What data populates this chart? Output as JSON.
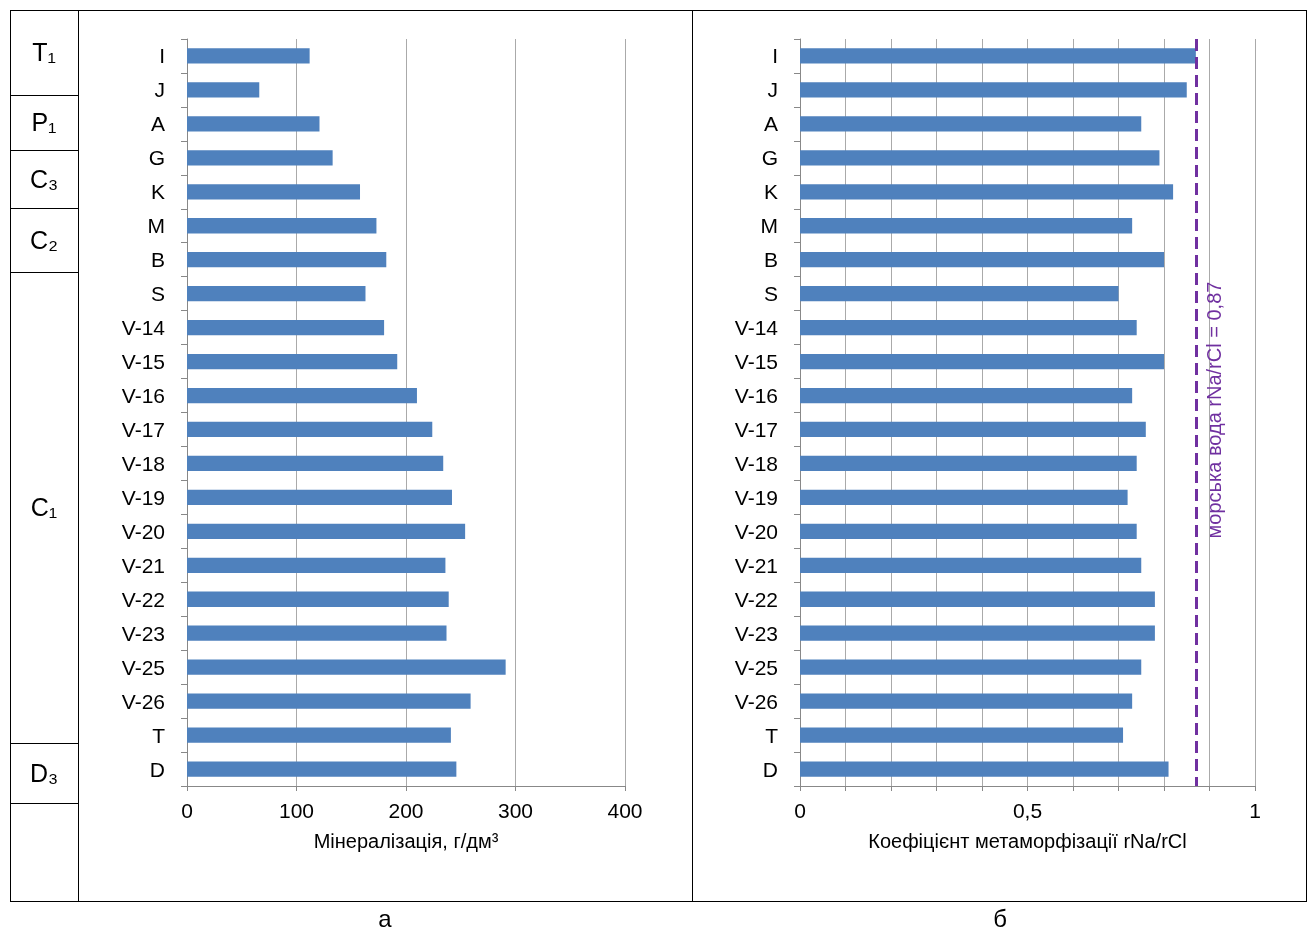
{
  "chart_data": [
    {
      "type": "bar",
      "orientation": "horizontal",
      "title": "а",
      "xlabel": "Мінералізація, г/дм³",
      "color": "#4f81bd",
      "grid": "x",
      "categories": [
        "I",
        "J",
        "A",
        "G",
        "K",
        "M",
        "B",
        "S",
        "V-14",
        "V-15",
        "V-16",
        "V-17",
        "V-18",
        "V-19",
        "V-20",
        "V-21",
        "V-22",
        "V-23",
        "V-25",
        "V-26",
        "T",
        "D"
      ],
      "values": [
        112,
        66,
        121,
        133,
        158,
        173,
        182,
        163,
        180,
        192,
        210,
        224,
        234,
        242,
        254,
        236,
        239,
        237,
        291,
        259,
        241,
        246
      ],
      "xlim": [
        0,
        400
      ],
      "xticks": [
        0,
        100,
        200,
        300,
        400
      ],
      "annotations": [
        "T₁",
        "P₁",
        "C₃",
        "C₂",
        "C₁",
        "D₃"
      ]
    },
    {
      "type": "bar",
      "orientation": "horizontal",
      "title": "б",
      "xlabel": "Коефіцієнт метаморфізації rNa/rCl",
      "color": "#4f81bd",
      "grid": "x",
      "categories": [
        "I",
        "J",
        "A",
        "G",
        "K",
        "M",
        "B",
        "S",
        "V-14",
        "V-15",
        "V-16",
        "V-17",
        "V-18",
        "V-19",
        "V-20",
        "V-21",
        "V-22",
        "V-23",
        "V-25",
        "V-26",
        "T",
        "D"
      ],
      "values": [
        0.87,
        0.85,
        0.75,
        0.79,
        0.82,
        0.73,
        0.8,
        0.7,
        0.74,
        0.8,
        0.73,
        0.76,
        0.74,
        0.72,
        0.74,
        0.75,
        0.78,
        0.78,
        0.75,
        0.73,
        0.71,
        0.81
      ],
      "xlim": [
        0,
        1
      ],
      "xticks": [
        0,
        {
          "value": 0.1,
          "label": null
        },
        {
          "value": 0.2,
          "label": null
        },
        {
          "value": 0.3,
          "label": null
        },
        {
          "value": 0.4,
          "label": null
        },
        {
          "value": 0.5,
          "label": "0,5"
        },
        {
          "value": 0.6,
          "label": null
        },
        {
          "value": 0.7,
          "label": null
        },
        {
          "value": 0.8,
          "label": null
        },
        {
          "value": 0.9,
          "label": null
        },
        1
      ],
      "ref_lines": [
        {
          "axis": "x",
          "value": 0.87,
          "label": "морська вода rNa/rCl = 0,87",
          "color": "#7030a0",
          "line_style": "dashed"
        }
      ]
    }
  ]
}
